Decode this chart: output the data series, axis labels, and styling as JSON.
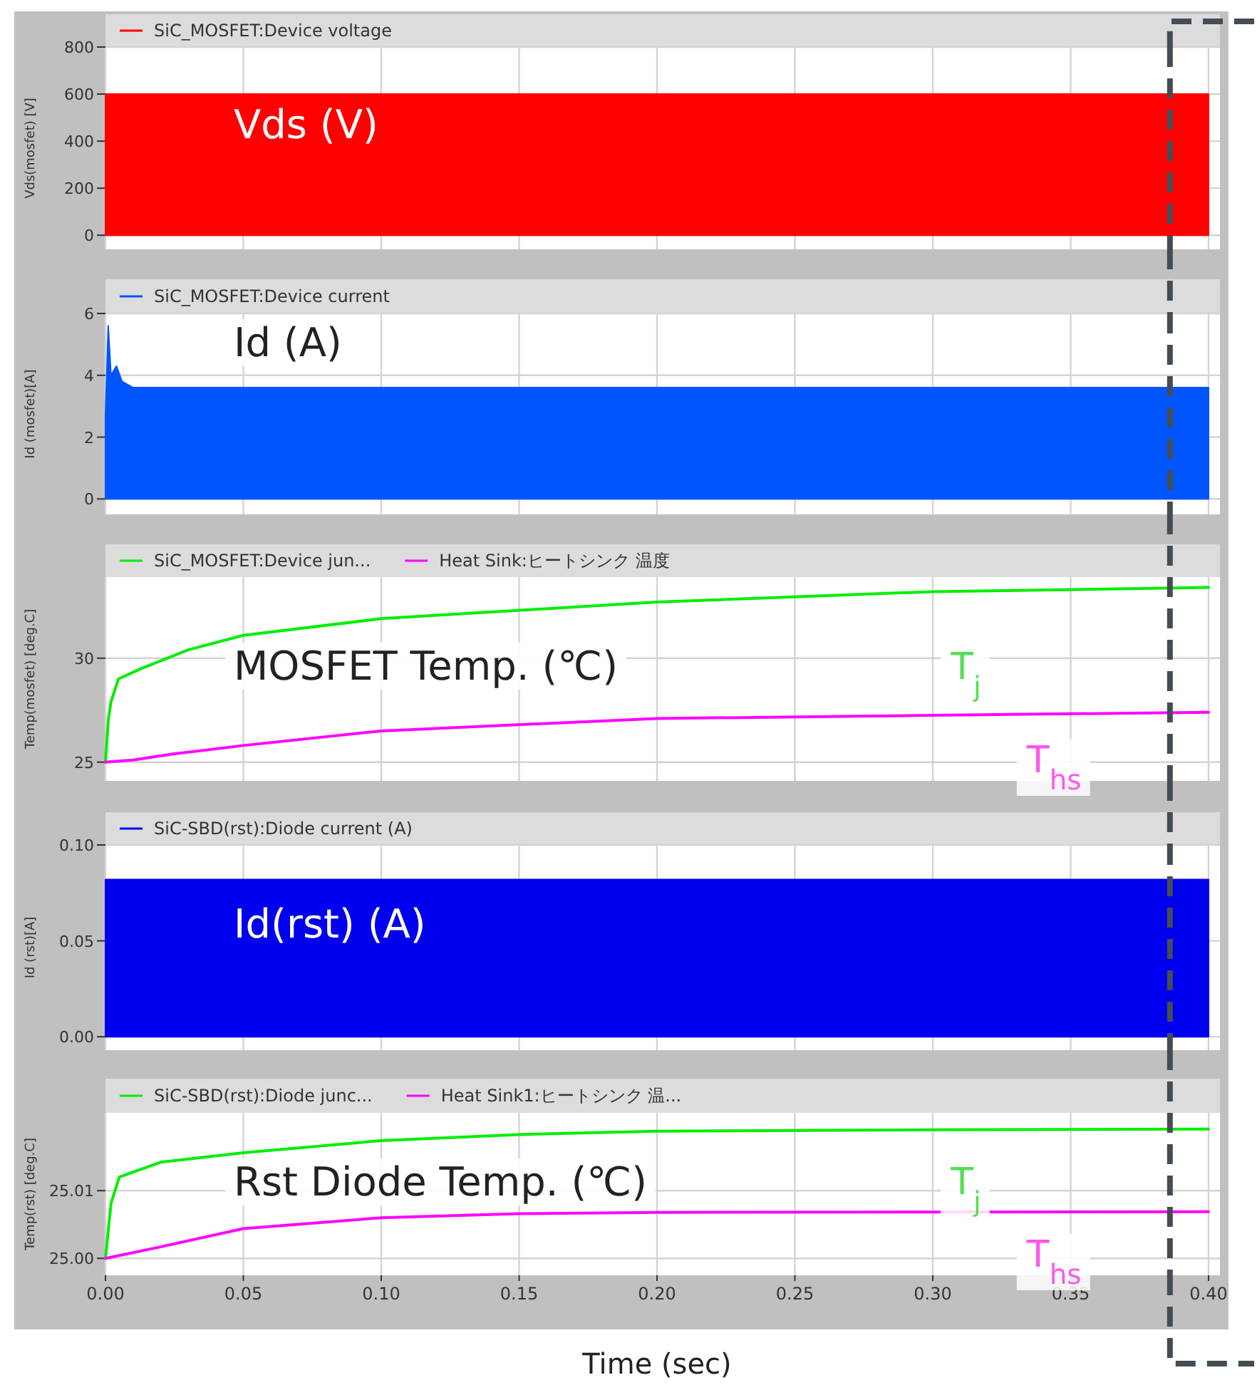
{
  "chart_data": [
    {
      "type": "area",
      "ylabel": "Vds(mosfet) [V]",
      "annotations": [
        "Vds (V)"
      ],
      "ref_lines": [
        {
          "axis": "x",
          "value": 0.386,
          "color": "#444c55",
          "line_style": "dashed"
        }
      ],
      "xlim": [
        0,
        0.4
      ],
      "xticks": [
        0,
        0.05,
        0.1,
        0.15,
        0.2,
        0.25,
        0.3,
        0.35,
        0.4
      ],
      "ylim": [
        -60,
        800
      ],
      "yticks": [
        0,
        200,
        400,
        600,
        800
      ],
      "tick_labels": "y",
      "grid": true,
      "legend": "top left",
      "marker": "none",
      "series": [
        {
          "name": "SiC_MOSFET:Device voltage",
          "color": "#ff0000",
          "x": [
            0,
            0.4
          ],
          "values": [
            600,
            600
          ]
        }
      ]
    },
    {
      "type": "area",
      "ylabel": "Id (mosfet)[A]",
      "annotations": [
        "Id (A)"
      ],
      "ref_lines": [
        {
          "axis": "x",
          "value": 0.386,
          "color": "#444c55",
          "line_style": "dashed"
        }
      ],
      "xlim": [
        0,
        0.4
      ],
      "xticks": [
        0,
        0.05,
        0.1,
        0.15,
        0.2,
        0.25,
        0.3,
        0.35,
        0.4
      ],
      "ylim": [
        -0.5,
        6
      ],
      "yticks": [
        0,
        2,
        4,
        6
      ],
      "tick_labels": "y",
      "grid": true,
      "legend": "top left",
      "marker": "none",
      "series": [
        {
          "name": "SiC_MOSFET:Device current",
          "color": "#0055ff",
          "x": [
            0,
            0.001,
            0.002,
            0.004,
            0.006,
            0.01,
            0.4
          ],
          "values": [
            2.7,
            5.6,
            4.0,
            4.3,
            3.8,
            3.6,
            3.6
          ]
        }
      ]
    },
    {
      "type": "line",
      "ylabel": "Temp(mosfet) [deg.C]",
      "annotations": [
        "MOSFET Temp. (℃)",
        "T$_{j}$",
        "T$_{hs}$"
      ],
      "ref_lines": [
        {
          "axis": "x",
          "value": 0.386,
          "color": "#444c55",
          "line_style": "dashed"
        }
      ],
      "xlim": [
        0,
        0.4
      ],
      "xticks": [
        0,
        0.05,
        0.1,
        0.15,
        0.2,
        0.25,
        0.3,
        0.35,
        0.4
      ],
      "ylim": [
        24.1,
        33.9
      ],
      "yticks": [
        25,
        30
      ],
      "tick_labels": "y",
      "grid": true,
      "legend": "top left",
      "marker": "none",
      "series": [
        {
          "name": "SiC_MOSFET:Device jun...",
          "color": "#00ee00",
          "x": [
            0,
            0.001,
            0.002,
            0.0047,
            0.013,
            0.03,
            0.05,
            0.1,
            0.2,
            0.3,
            0.4
          ],
          "values": [
            25,
            27.0,
            27.9,
            29.0,
            29.5,
            30.4,
            31.1,
            31.9,
            32.7,
            33.2,
            33.4
          ]
        },
        {
          "name": "Heat Sink:ヒートシンク 温度",
          "color": "#ff00ff",
          "x": [
            0,
            0.01,
            0.025,
            0.05,
            0.1,
            0.2,
            0.3,
            0.4
          ],
          "values": [
            25,
            25.1,
            25.4,
            25.8,
            26.5,
            27.1,
            27.25,
            27.4
          ]
        }
      ]
    },
    {
      "type": "area",
      "ylabel": "Id (rst)[A]",
      "annotations": [
        "Id(rst) (A)"
      ],
      "ref_lines": [
        {
          "axis": "x",
          "value": 0.386,
          "color": "#444c55",
          "line_style": "dashed"
        }
      ],
      "xlim": [
        0,
        0.4
      ],
      "xticks": [
        0,
        0.05,
        0.1,
        0.15,
        0.2,
        0.25,
        0.3,
        0.35,
        0.4
      ],
      "ylim": [
        -0.007,
        0.1
      ],
      "yticks": [
        {
          "value": 0,
          "label": "0.00"
        },
        {
          "value": 0.05,
          "label": "0.05"
        },
        {
          "value": 0.1,
          "label": "0.10"
        }
      ],
      "tick_labels": "y",
      "grid": true,
      "legend": "top left",
      "marker": "none",
      "series": [
        {
          "name": "SiC-SBD(rst):Diode current (A)",
          "color": "#0000ee",
          "x": [
            0,
            0.4
          ],
          "values": [
            0.082,
            0.082
          ]
        }
      ]
    },
    {
      "type": "line",
      "xlabel": "Time (sec)",
      "ylabel": "Temp(rst) [deg.C]",
      "annotations": [
        "Rst Diode Temp. (℃)",
        "T$_{j}$",
        "T$_{hs}$"
      ],
      "ref_lines": [
        {
          "axis": "x",
          "value": 0.386,
          "color": "#444c55",
          "line_style": "dashed"
        }
      ],
      "xlim": [
        0,
        0.4
      ],
      "xticks": [
        {
          "value": 0,
          "label": "0.00"
        },
        {
          "value": 0.05,
          "label": "0.05"
        },
        {
          "value": 0.1,
          "label": "0.10"
        },
        {
          "value": 0.15,
          "label": "0.15"
        },
        {
          "value": 0.2,
          "label": "0.20"
        },
        {
          "value": 0.25,
          "label": "0.25"
        },
        {
          "value": 0.3,
          "label": "0.30"
        },
        {
          "value": 0.35,
          "label": "0.35"
        },
        {
          "value": 0.4,
          "label": "0.40"
        }
      ],
      "ylim": [
        24.9975,
        25.0215
      ],
      "yticks": [
        {
          "value": 25,
          "label": "25.00"
        },
        {
          "value": 25.01,
          "label": "25.01"
        }
      ],
      "grid": true,
      "legend": "top left",
      "marker": "none",
      "series": [
        {
          "name": "SiC-SBD(rst):Diode junc...",
          "color": "#00ee00",
          "x": [
            0,
            0.002,
            0.005,
            0.02,
            0.05,
            0.1,
            0.15,
            0.2,
            0.3,
            0.4
          ],
          "values": [
            25.0,
            25.0081,
            25.012,
            25.0142,
            25.0156,
            25.0174,
            25.0183,
            25.0188,
            25.019,
            25.0191
          ]
        },
        {
          "name": "Heat Sink1:ヒートシンク 温...",
          "color": "#ff00ff",
          "x": [
            0,
            0.02,
            0.05,
            0.1,
            0.15,
            0.2,
            0.4
          ],
          "values": [
            25.0,
            25.0017,
            25.0044,
            25.006,
            25.0066,
            25.0068,
            25.0069
          ]
        }
      ]
    }
  ]
}
